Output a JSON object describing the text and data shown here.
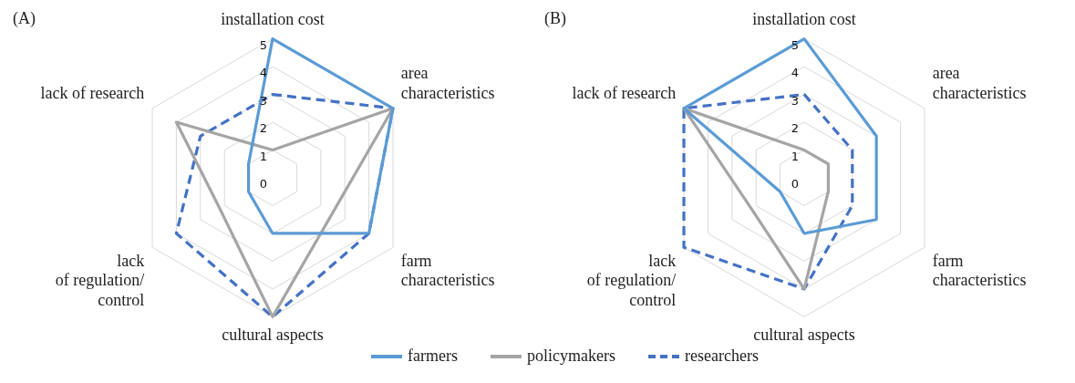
{
  "chart_data": [
    {
      "type": "radar",
      "title": "(A)",
      "categories": [
        "installation cost",
        "area\ncharacteristics",
        "farm\ncharacteristics",
        "cultural aspects",
        "lack\nof regulation/\ncontrol",
        "lack of research"
      ],
      "ylim": [
        0,
        5
      ],
      "yticks": [
        0,
        1,
        2,
        3,
        4,
        5
      ],
      "grid": true,
      "marker": "none",
      "legend": "bottom",
      "series": [
        {
          "name": "farmers",
          "color": "#5b9bd5",
          "line_style": "solid",
          "values": [
            5,
            5,
            4,
            2,
            1,
            1
          ]
        },
        {
          "name": "policymakers",
          "color": "#a5a5a5",
          "line_style": "solid",
          "values": [
            1,
            5,
            2.5,
            5,
            2.2,
            4
          ]
        },
        {
          "name": "researchers",
          "color": "#4472c4",
          "line_style": "dashed",
          "values": [
            3,
            5,
            4,
            5,
            4,
            3
          ]
        }
      ]
    },
    {
      "type": "radar",
      "title": "(B)",
      "categories": [
        "installation cost",
        "area\ncharacteristics",
        "farm\ncharacteristics",
        "cultural aspects",
        "lack\nof regulation/\ncontrol",
        "lack of research"
      ],
      "ylim": [
        0,
        5
      ],
      "yticks": [
        0,
        1,
        2,
        3,
        4,
        5
      ],
      "grid": true,
      "marker": "none",
      "legend": "bottom",
      "series": [
        {
          "name": "farmers",
          "color": "#5b9bd5",
          "line_style": "solid",
          "values": [
            5,
            3,
            3,
            2,
            1,
            5
          ]
        },
        {
          "name": "policymakers",
          "color": "#a5a5a5",
          "line_style": "solid",
          "values": [
            1,
            1,
            1,
            4,
            2.2,
            5
          ]
        },
        {
          "name": "researchers",
          "color": "#4472c4",
          "line_style": "dashed",
          "values": [
            3,
            2,
            2,
            4,
            5,
            5
          ]
        }
      ]
    }
  ]
}
